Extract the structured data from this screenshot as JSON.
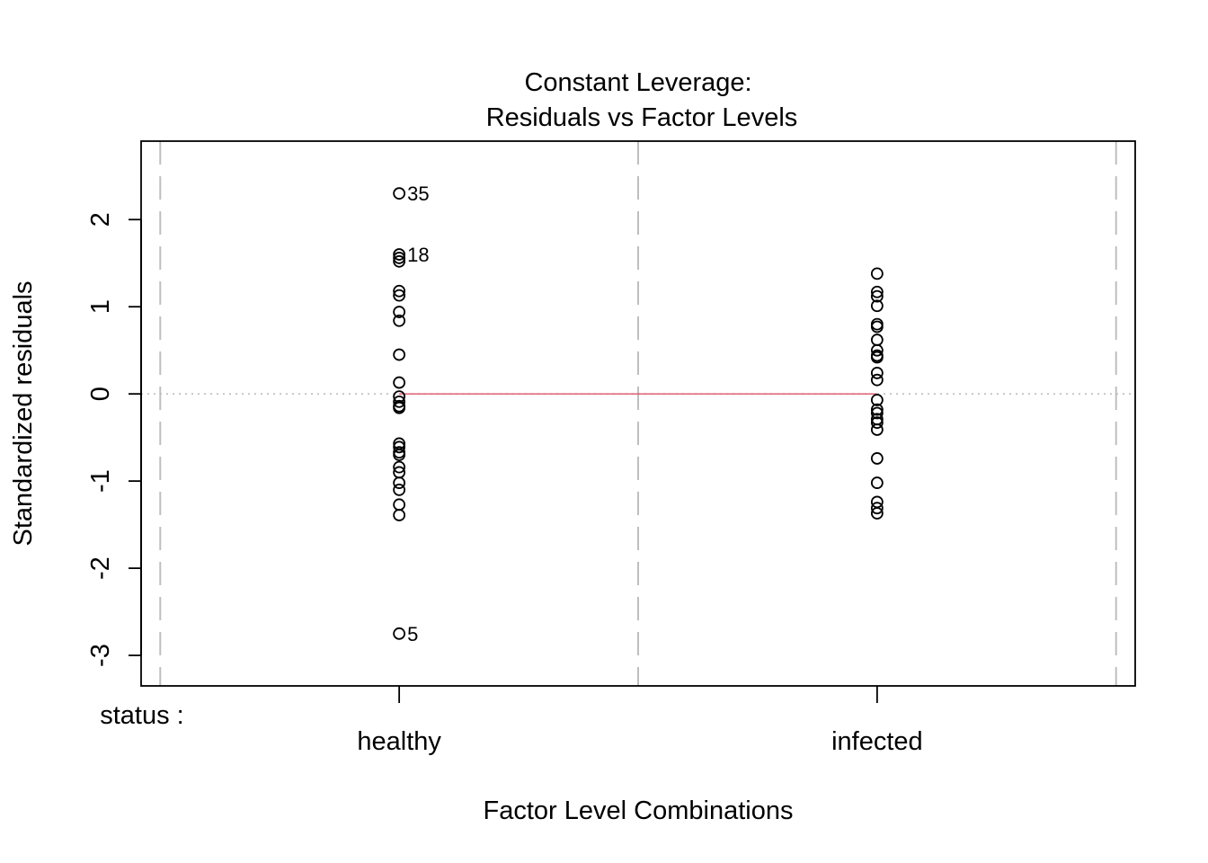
{
  "chart_data": {
    "type": "scatter",
    "title_line1": "Constant Leverage:",
    "title_line2": "Residuals vs Factor Levels",
    "xlabel": "Factor Level Combinations",
    "ylabel": "Standardized residuals",
    "factor_label": "status :",
    "categories": [
      "healthy",
      "infected"
    ],
    "ylim": [
      -3.35,
      2.9
    ],
    "yticks": [
      -3,
      -2,
      -1,
      0,
      1,
      2
    ],
    "ytick_labels": [
      "-3",
      "-2",
      "-1",
      "0",
      "1",
      "2"
    ],
    "reference_line": 0,
    "smooth_line": [
      0,
      0
    ],
    "colors": {
      "points": "#000000",
      "smooth": "#df536b",
      "reference": "#bebebe",
      "separators": "#bebebe"
    },
    "series": [
      {
        "category": "healthy",
        "values": [
          2.3,
          1.6,
          1.56,
          1.52,
          1.18,
          1.13,
          0.94,
          0.84,
          0.45,
          0.13,
          -0.03,
          -0.09,
          -0.14,
          -0.16,
          -0.57,
          -0.61,
          -0.67,
          -0.7,
          -0.84,
          -0.9,
          -1.02,
          -1.1,
          -1.27,
          -1.39,
          -2.75
        ]
      },
      {
        "category": "infected",
        "values": [
          1.38,
          1.17,
          1.12,
          1.01,
          0.8,
          0.77,
          0.62,
          0.5,
          0.44,
          0.42,
          0.24,
          0.16,
          -0.07,
          -0.18,
          -0.22,
          -0.29,
          -0.33,
          -0.41,
          -0.74,
          -1.02,
          -1.24,
          -1.31,
          -1.37
        ]
      }
    ],
    "point_labels": [
      {
        "category": "healthy",
        "value": 2.3,
        "label": "35"
      },
      {
        "category": "healthy",
        "value": 1.6,
        "label": "18"
      },
      {
        "category": "healthy",
        "value": -2.75,
        "label": "5"
      }
    ]
  }
}
